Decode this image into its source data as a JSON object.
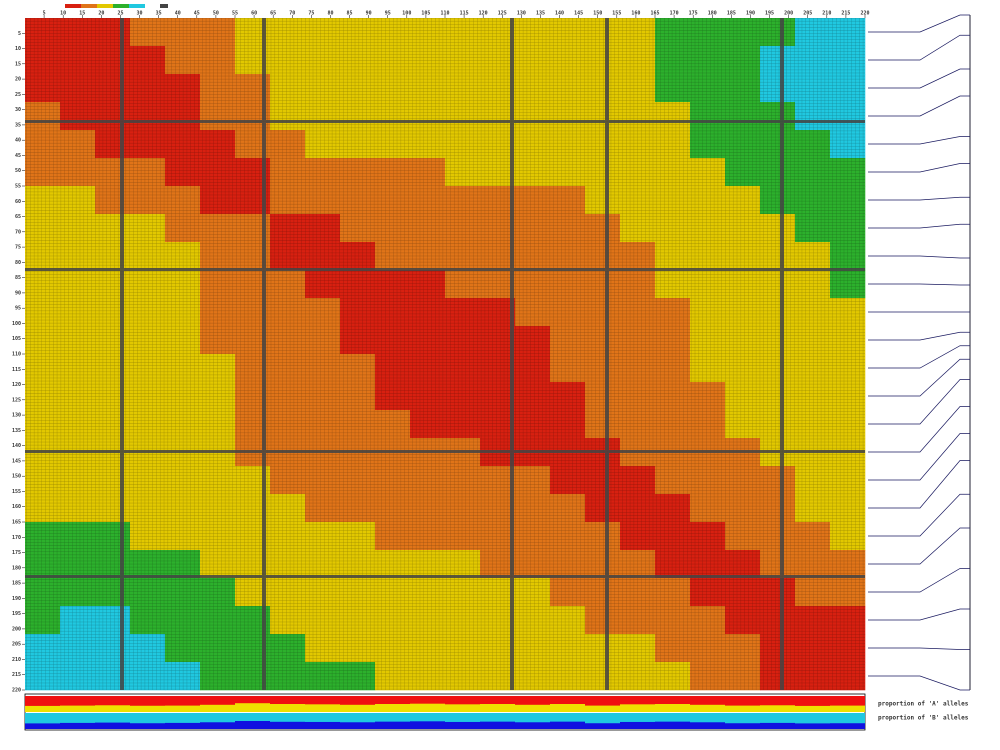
{
  "chart_data": {
    "type": "heatmap",
    "palette": [
      "#20c8e0",
      "#2cb02c",
      "#e2c800",
      "#e07418",
      "#d82010"
    ],
    "matrix": [
      [
        5,
        5,
        5,
        4,
        4,
        4,
        3,
        3,
        3,
        3,
        3,
        3,
        3,
        3,
        3,
        3,
        3,
        3,
        2,
        2,
        2,
        2,
        1,
        1
      ],
      [
        5,
        5,
        5,
        5,
        4,
        4,
        3,
        3,
        3,
        3,
        3,
        3,
        3,
        3,
        3,
        3,
        3,
        3,
        2,
        2,
        2,
        1,
        1,
        1
      ],
      [
        5,
        5,
        5,
        5,
        5,
        4,
        4,
        3,
        3,
        3,
        3,
        3,
        3,
        3,
        3,
        3,
        3,
        3,
        2,
        2,
        2,
        1,
        1,
        1
      ],
      [
        4,
        5,
        5,
        5,
        5,
        4,
        4,
        3,
        3,
        3,
        3,
        3,
        3,
        3,
        3,
        3,
        3,
        3,
        3,
        2,
        2,
        2,
        1,
        1
      ],
      [
        4,
        4,
        5,
        5,
        5,
        5,
        4,
        4,
        3,
        3,
        3,
        3,
        3,
        3,
        3,
        3,
        3,
        3,
        3,
        2,
        2,
        2,
        2,
        1
      ],
      [
        4,
        4,
        4,
        4,
        5,
        5,
        5,
        4,
        4,
        4,
        4,
        4,
        3,
        3,
        3,
        3,
        3,
        3,
        3,
        3,
        2,
        2,
        2,
        2
      ],
      [
        3,
        3,
        4,
        4,
        4,
        5,
        5,
        4,
        4,
        4,
        4,
        4,
        4,
        4,
        4,
        4,
        3,
        3,
        3,
        3,
        3,
        2,
        2,
        2
      ],
      [
        3,
        3,
        3,
        3,
        4,
        4,
        4,
        5,
        5,
        4,
        4,
        4,
        4,
        4,
        4,
        4,
        4,
        3,
        3,
        3,
        3,
        3,
        2,
        2
      ],
      [
        3,
        3,
        3,
        3,
        3,
        4,
        4,
        5,
        5,
        5,
        4,
        4,
        4,
        4,
        4,
        4,
        4,
        4,
        3,
        3,
        3,
        3,
        3,
        2
      ],
      [
        3,
        3,
        3,
        3,
        3,
        4,
        4,
        4,
        5,
        5,
        5,
        5,
        4,
        4,
        4,
        4,
        4,
        4,
        3,
        3,
        3,
        3,
        3,
        2
      ],
      [
        3,
        3,
        3,
        3,
        3,
        4,
        4,
        4,
        4,
        5,
        5,
        5,
        5,
        5,
        4,
        4,
        4,
        4,
        4,
        3,
        3,
        3,
        3,
        3
      ],
      [
        3,
        3,
        3,
        3,
        3,
        4,
        4,
        4,
        4,
        5,
        5,
        5,
        5,
        5,
        5,
        4,
        4,
        4,
        4,
        3,
        3,
        3,
        3,
        3
      ],
      [
        3,
        3,
        3,
        3,
        3,
        3,
        4,
        4,
        4,
        4,
        5,
        5,
        5,
        5,
        5,
        4,
        4,
        4,
        4,
        3,
        3,
        3,
        3,
        3
      ],
      [
        3,
        3,
        3,
        3,
        3,
        3,
        4,
        4,
        4,
        4,
        5,
        5,
        5,
        5,
        5,
        5,
        4,
        4,
        4,
        4,
        3,
        3,
        3,
        3
      ],
      [
        3,
        3,
        3,
        3,
        3,
        3,
        4,
        4,
        4,
        4,
        4,
        5,
        5,
        5,
        5,
        5,
        4,
        4,
        4,
        4,
        3,
        3,
        3,
        3
      ],
      [
        3,
        3,
        3,
        3,
        3,
        3,
        4,
        4,
        4,
        4,
        4,
        4,
        4,
        5,
        5,
        5,
        5,
        4,
        4,
        4,
        4,
        3,
        3,
        3
      ],
      [
        3,
        3,
        3,
        3,
        3,
        3,
        3,
        4,
        4,
        4,
        4,
        4,
        4,
        4,
        4,
        5,
        5,
        5,
        4,
        4,
        4,
        4,
        3,
        3
      ],
      [
        3,
        3,
        3,
        3,
        3,
        3,
        3,
        3,
        4,
        4,
        4,
        4,
        4,
        4,
        4,
        4,
        5,
        5,
        5,
        4,
        4,
        4,
        3,
        3
      ],
      [
        2,
        2,
        2,
        3,
        3,
        3,
        3,
        3,
        3,
        3,
        4,
        4,
        4,
        4,
        4,
        4,
        4,
        5,
        5,
        5,
        4,
        4,
        4,
        3
      ],
      [
        2,
        2,
        2,
        2,
        2,
        3,
        3,
        3,
        3,
        3,
        3,
        3,
        3,
        4,
        4,
        4,
        4,
        4,
        5,
        5,
        5,
        4,
        4,
        4
      ],
      [
        2,
        2,
        2,
        2,
        2,
        2,
        3,
        3,
        3,
        3,
        3,
        3,
        3,
        3,
        3,
        4,
        4,
        4,
        4,
        5,
        5,
        5,
        4,
        4
      ],
      [
        2,
        1,
        1,
        2,
        2,
        2,
        2,
        3,
        3,
        3,
        3,
        3,
        3,
        3,
        3,
        3,
        4,
        4,
        4,
        4,
        5,
        5,
        5,
        5
      ],
      [
        1,
        1,
        1,
        1,
        2,
        2,
        2,
        2,
        3,
        3,
        3,
        3,
        3,
        3,
        3,
        3,
        3,
        3,
        4,
        4,
        4,
        5,
        5,
        5
      ],
      [
        1,
        1,
        1,
        1,
        1,
        2,
        2,
        2,
        2,
        2,
        3,
        3,
        3,
        3,
        3,
        3,
        3,
        3,
        3,
        4,
        4,
        5,
        5,
        5
      ]
    ],
    "xlim": [
      0,
      220
    ],
    "axis_ticks": [
      5,
      10,
      15,
      20,
      25,
      30,
      35,
      40,
      45,
      50,
      55,
      60,
      65,
      70,
      75,
      80,
      85,
      90,
      95,
      100,
      105,
      110,
      115,
      120,
      125,
      130,
      135,
      140,
      145,
      150,
      155,
      160,
      165,
      170,
      175,
      180,
      185,
      190,
      195,
      200,
      205,
      210,
      215,
      220
    ],
    "allele_A": [
      0.62,
      0.6,
      0.58,
      0.61,
      0.6,
      0.55,
      0.45,
      0.5,
      0.52,
      0.55,
      0.5,
      0.48,
      0.52,
      0.5,
      0.55,
      0.5,
      0.6,
      0.52,
      0.5,
      0.55,
      0.6,
      0.58,
      0.62,
      0.6
    ],
    "allele_B": [
      0.35,
      0.38,
      0.4,
      0.36,
      0.38,
      0.42,
      0.5,
      0.45,
      0.44,
      0.42,
      0.46,
      0.48,
      0.44,
      0.46,
      0.42,
      0.46,
      0.36,
      0.44,
      0.46,
      0.42,
      0.36,
      0.38,
      0.35,
      0.36
    ],
    "map_lim": [
      0,
      100
    ],
    "map_positions": [
      0,
      3,
      8,
      12,
      18,
      22,
      27,
      31,
      36,
      40,
      44,
      47,
      49,
      51,
      54,
      58,
      62,
      66,
      71,
      76,
      82,
      88,
      94,
      100
    ],
    "label_A": "proportion of 'A' alleles",
    "label_B": "proportion of 'B' alleles"
  }
}
